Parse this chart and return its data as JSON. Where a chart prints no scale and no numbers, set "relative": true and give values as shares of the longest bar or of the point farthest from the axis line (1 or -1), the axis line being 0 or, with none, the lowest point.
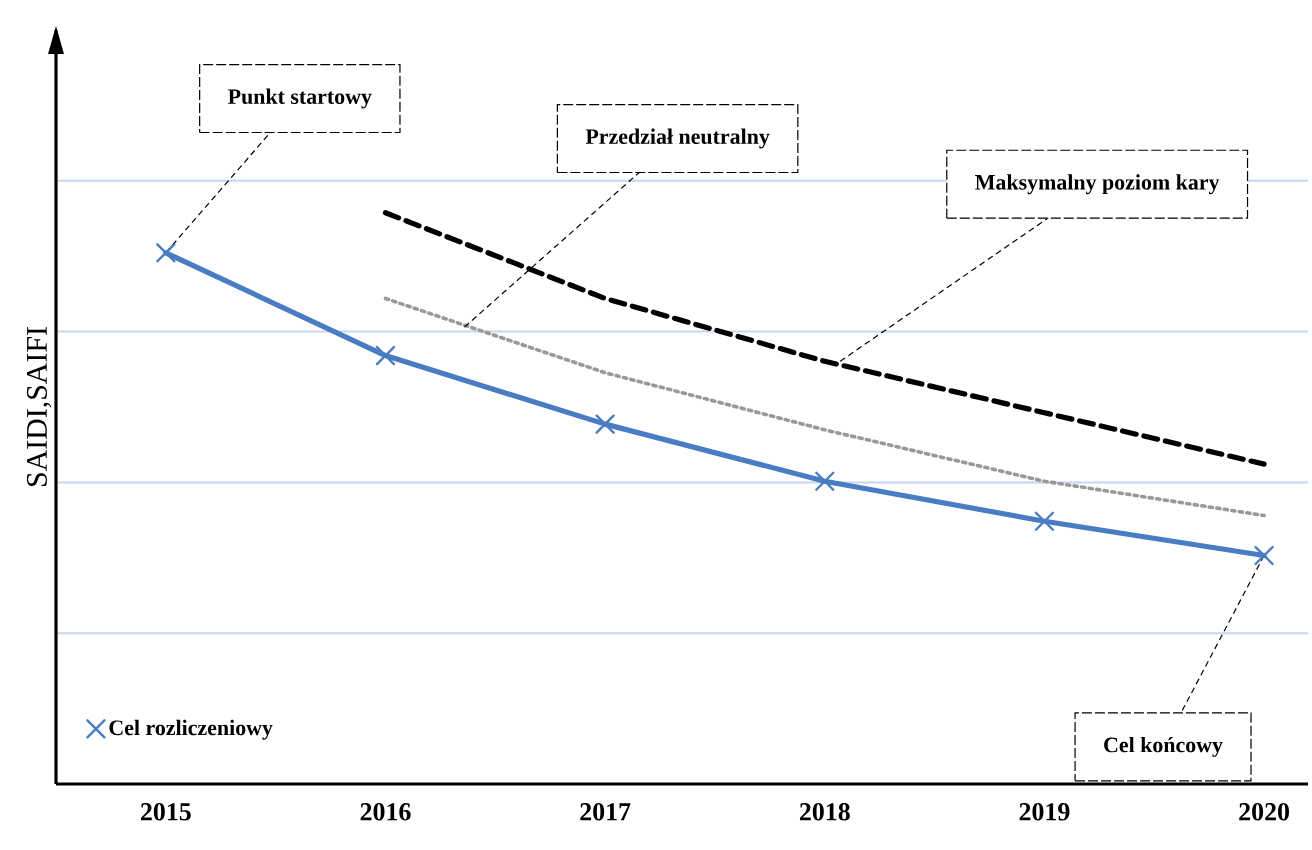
{
  "chart_data": {
    "type": "line",
    "relative": true,
    "ylabel": "SAIDI,SAIFI",
    "x": [
      2015,
      2016,
      2017,
      2018,
      2019,
      2020
    ],
    "xlim": [
      2014.5,
      2020.2
    ],
    "xticks": [
      2015,
      2016,
      2017,
      2018,
      2019,
      2020
    ],
    "series": [
      {
        "name": "Cel rozliczeniowy",
        "color": "#4a7cc4",
        "marker": "cross",
        "line_style": "solid",
        "values": [
          0.93,
          0.75,
          0.63,
          0.53,
          0.46,
          0.4
        ]
      },
      {
        "color": "#000000",
        "marker": "none",
        "line_style": "dashed",
        "x": [
          2016,
          2017,
          2018,
          2019,
          2020
        ],
        "values": [
          1.0,
          0.85,
          0.74,
          0.65,
          0.56
        ]
      },
      {
        "color": "#999999",
        "marker": "none",
        "line_style": "dotted",
        "x": [
          2016,
          2017,
          2018,
          2019,
          2020
        ],
        "values": [
          0.85,
          0.72,
          0.62,
          0.53,
          0.47
        ]
      }
    ],
    "annotations": [
      {
        "text": "Punkt startowy",
        "x": 2015,
        "y": 0.93
      },
      {
        "text": "Przedział neutralny",
        "x": 2016.36,
        "y": 0.8
      },
      {
        "text": "Maksymalny poziom kary",
        "x": 2018.07,
        "y": 0.74
      },
      {
        "text": "Cel końcowy",
        "x": 2020,
        "y": 0.4
      }
    ],
    "grid": "y",
    "legend": "bottom left"
  }
}
